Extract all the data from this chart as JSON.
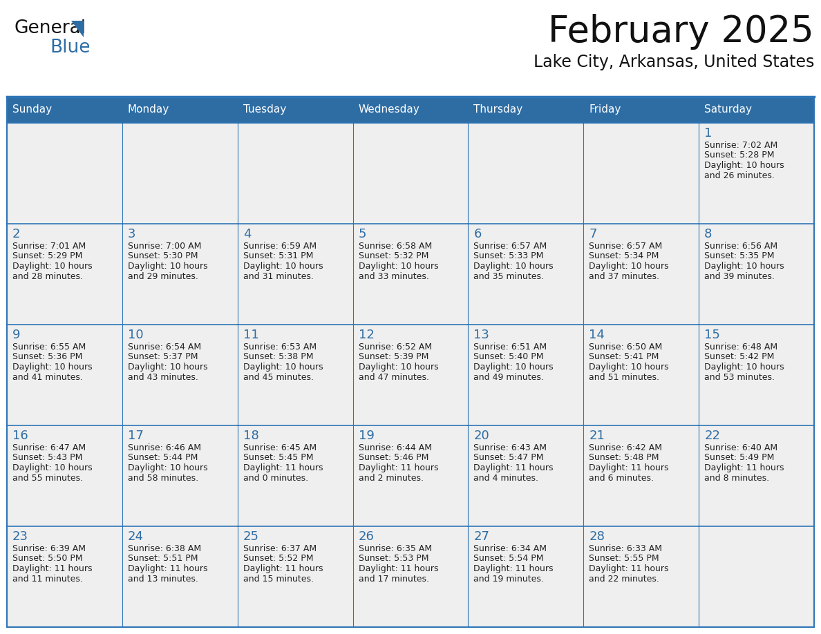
{
  "title": "February 2025",
  "subtitle": "Lake City, Arkansas, United States",
  "days_of_week": [
    "Sunday",
    "Monday",
    "Tuesday",
    "Wednesday",
    "Thursday",
    "Friday",
    "Saturday"
  ],
  "header_bg": "#2E6DA4",
  "header_text": "#FFFFFF",
  "cell_bg": "#EFEFEF",
  "cell_bg_white": "#FFFFFF",
  "day_number_color": "#2E6DA4",
  "info_text_color": "#222222",
  "border_color": "#2E75B6",
  "calendar_data": [
    [
      null,
      null,
      null,
      null,
      null,
      null,
      {
        "day": 1,
        "sunrise": "7:02 AM",
        "sunset": "5:28 PM",
        "daylight": "10 hours",
        "daylight2": "and 26 minutes."
      }
    ],
    [
      {
        "day": 2,
        "sunrise": "7:01 AM",
        "sunset": "5:29 PM",
        "daylight": "10 hours",
        "daylight2": "and 28 minutes."
      },
      {
        "day": 3,
        "sunrise": "7:00 AM",
        "sunset": "5:30 PM",
        "daylight": "10 hours",
        "daylight2": "and 29 minutes."
      },
      {
        "day": 4,
        "sunrise": "6:59 AM",
        "sunset": "5:31 PM",
        "daylight": "10 hours",
        "daylight2": "and 31 minutes."
      },
      {
        "day": 5,
        "sunrise": "6:58 AM",
        "sunset": "5:32 PM",
        "daylight": "10 hours",
        "daylight2": "and 33 minutes."
      },
      {
        "day": 6,
        "sunrise": "6:57 AM",
        "sunset": "5:33 PM",
        "daylight": "10 hours",
        "daylight2": "and 35 minutes."
      },
      {
        "day": 7,
        "sunrise": "6:57 AM",
        "sunset": "5:34 PM",
        "daylight": "10 hours",
        "daylight2": "and 37 minutes."
      },
      {
        "day": 8,
        "sunrise": "6:56 AM",
        "sunset": "5:35 PM",
        "daylight": "10 hours",
        "daylight2": "and 39 minutes."
      }
    ],
    [
      {
        "day": 9,
        "sunrise": "6:55 AM",
        "sunset": "5:36 PM",
        "daylight": "10 hours",
        "daylight2": "and 41 minutes."
      },
      {
        "day": 10,
        "sunrise": "6:54 AM",
        "sunset": "5:37 PM",
        "daylight": "10 hours",
        "daylight2": "and 43 minutes."
      },
      {
        "day": 11,
        "sunrise": "6:53 AM",
        "sunset": "5:38 PM",
        "daylight": "10 hours",
        "daylight2": "and 45 minutes."
      },
      {
        "day": 12,
        "sunrise": "6:52 AM",
        "sunset": "5:39 PM",
        "daylight": "10 hours",
        "daylight2": "and 47 minutes."
      },
      {
        "day": 13,
        "sunrise": "6:51 AM",
        "sunset": "5:40 PM",
        "daylight": "10 hours",
        "daylight2": "and 49 minutes."
      },
      {
        "day": 14,
        "sunrise": "6:50 AM",
        "sunset": "5:41 PM",
        "daylight": "10 hours",
        "daylight2": "and 51 minutes."
      },
      {
        "day": 15,
        "sunrise": "6:48 AM",
        "sunset": "5:42 PM",
        "daylight": "10 hours",
        "daylight2": "and 53 minutes."
      }
    ],
    [
      {
        "day": 16,
        "sunrise": "6:47 AM",
        "sunset": "5:43 PM",
        "daylight": "10 hours",
        "daylight2": "and 55 minutes."
      },
      {
        "day": 17,
        "sunrise": "6:46 AM",
        "sunset": "5:44 PM",
        "daylight": "10 hours",
        "daylight2": "and 58 minutes."
      },
      {
        "day": 18,
        "sunrise": "6:45 AM",
        "sunset": "5:45 PM",
        "daylight": "11 hours",
        "daylight2": "and 0 minutes."
      },
      {
        "day": 19,
        "sunrise": "6:44 AM",
        "sunset": "5:46 PM",
        "daylight": "11 hours",
        "daylight2": "and 2 minutes."
      },
      {
        "day": 20,
        "sunrise": "6:43 AM",
        "sunset": "5:47 PM",
        "daylight": "11 hours",
        "daylight2": "and 4 minutes."
      },
      {
        "day": 21,
        "sunrise": "6:42 AM",
        "sunset": "5:48 PM",
        "daylight": "11 hours",
        "daylight2": "and 6 minutes."
      },
      {
        "day": 22,
        "sunrise": "6:40 AM",
        "sunset": "5:49 PM",
        "daylight": "11 hours",
        "daylight2": "and 8 minutes."
      }
    ],
    [
      {
        "day": 23,
        "sunrise": "6:39 AM",
        "sunset": "5:50 PM",
        "daylight": "11 hours",
        "daylight2": "and 11 minutes."
      },
      {
        "day": 24,
        "sunrise": "6:38 AM",
        "sunset": "5:51 PM",
        "daylight": "11 hours",
        "daylight2": "and 13 minutes."
      },
      {
        "day": 25,
        "sunrise": "6:37 AM",
        "sunset": "5:52 PM",
        "daylight": "11 hours",
        "daylight2": "and 15 minutes."
      },
      {
        "day": 26,
        "sunrise": "6:35 AM",
        "sunset": "5:53 PM",
        "daylight": "11 hours",
        "daylight2": "and 17 minutes."
      },
      {
        "day": 27,
        "sunrise": "6:34 AM",
        "sunset": "5:54 PM",
        "daylight": "11 hours",
        "daylight2": "and 19 minutes."
      },
      {
        "day": 28,
        "sunrise": "6:33 AM",
        "sunset": "5:55 PM",
        "daylight": "11 hours",
        "daylight2": "and 22 minutes."
      },
      null
    ]
  ],
  "num_rows": 5,
  "num_cols": 7
}
